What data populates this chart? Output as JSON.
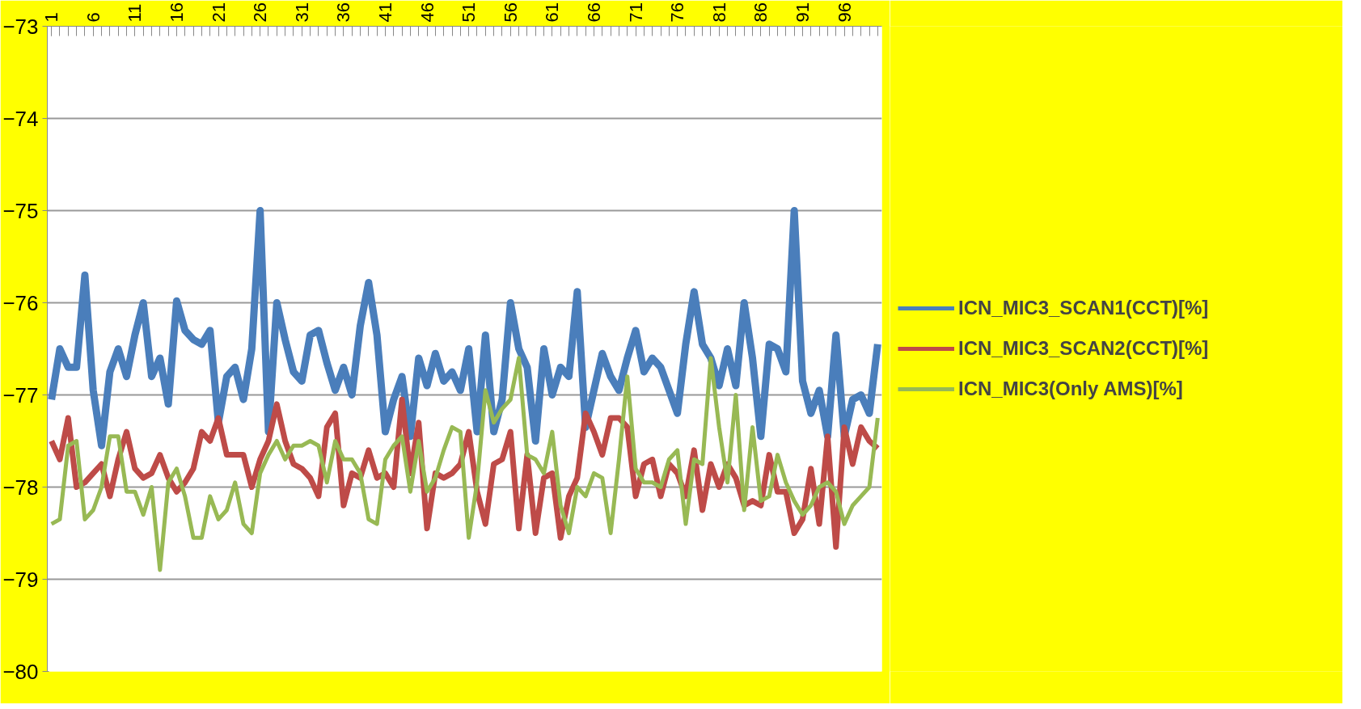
{
  "chart_data": {
    "type": "line",
    "categories": [
      "1",
      null,
      null,
      null,
      null,
      "6",
      null,
      null,
      null,
      null,
      "11",
      null,
      null,
      null,
      null,
      "16",
      null,
      null,
      null,
      null,
      "21",
      null,
      null,
      null,
      null,
      "26",
      null,
      null,
      null,
      null,
      "31",
      null,
      null,
      null,
      null,
      "36",
      null,
      null,
      null,
      null,
      "41",
      null,
      null,
      null,
      null,
      "46",
      null,
      null,
      null,
      null,
      "51",
      null,
      null,
      null,
      null,
      "56",
      null,
      null,
      null,
      null,
      "61",
      null,
      null,
      null,
      null,
      "66",
      null,
      null,
      null,
      null,
      "71",
      null,
      null,
      null,
      null,
      "76",
      null,
      null,
      null,
      null,
      "81",
      null,
      null,
      null,
      null,
      "86",
      null,
      null,
      null,
      null,
      "91",
      null,
      null,
      null,
      null,
      "96",
      null,
      null,
      null,
      null
    ],
    "series": [
      {
        "name": "ICN_MIC3_SCAN1(CCT)[%]",
        "color": "#4a7ebb",
        "values": [
          -77.05,
          -76.5,
          -76.7,
          -76.7,
          -75.7,
          -76.95,
          -77.55,
          -76.75,
          -76.5,
          -76.8,
          -76.35,
          -76.0,
          -76.8,
          -76.6,
          -77.1,
          -75.98,
          -76.3,
          -76.4,
          -76.45,
          -76.3,
          -77.3,
          -76.8,
          -76.7,
          -77.05,
          -76.5,
          -75.0,
          -77.4,
          -76.0,
          -76.4,
          -76.75,
          -76.85,
          -76.35,
          -76.3,
          -76.65,
          -76.95,
          -76.7,
          -77.0,
          -76.25,
          -75.78,
          -76.35,
          -77.4,
          -77.05,
          -76.8,
          -77.45,
          -76.6,
          -76.9,
          -76.55,
          -76.85,
          -76.75,
          -76.95,
          -76.5,
          -77.4,
          -76.35,
          -77.4,
          -77.05,
          -76.0,
          -76.5,
          -76.7,
          -77.5,
          -76.5,
          -77.0,
          -76.7,
          -76.8,
          -75.88,
          -77.35,
          -76.95,
          -76.55,
          -76.8,
          -76.95,
          -76.6,
          -76.3,
          -76.75,
          -76.6,
          -76.7,
          -76.95,
          -77.2,
          -76.45,
          -75.88,
          -76.45,
          -76.6,
          -76.9,
          -76.5,
          -76.9,
          -76.0,
          -76.6,
          -77.45,
          -76.45,
          -76.5,
          -76.75,
          -75.0,
          -76.85,
          -77.2,
          -76.95,
          -77.45,
          -76.35,
          -77.45,
          -77.05,
          -77.0,
          -77.2,
          -76.45
        ]
      },
      {
        "name": "ICN_MIC3_SCAN2(CCT)[%]",
        "color": "#be4b48",
        "values": [
          -77.5,
          -77.7,
          -77.25,
          -78.0,
          -77.95,
          -77.85,
          -77.75,
          -78.1,
          -77.7,
          -77.4,
          -77.8,
          -77.9,
          -77.85,
          -77.65,
          -77.9,
          -78.05,
          -77.95,
          -77.8,
          -77.4,
          -77.5,
          -77.25,
          -77.65,
          -77.65,
          -77.65,
          -78.0,
          -77.7,
          -77.5,
          -77.1,
          -77.5,
          -77.75,
          -77.8,
          -77.9,
          -78.1,
          -77.35,
          -77.2,
          -78.2,
          -77.85,
          -77.9,
          -77.6,
          -77.9,
          -77.85,
          -78.0,
          -77.05,
          -77.85,
          -77.3,
          -78.45,
          -77.85,
          -77.9,
          -77.85,
          -77.75,
          -77.4,
          -78.05,
          -78.4,
          -77.75,
          -77.7,
          -77.4,
          -78.45,
          -77.65,
          -78.5,
          -77.9,
          -77.85,
          -78.55,
          -78.1,
          -77.9,
          -77.2,
          -77.4,
          -77.65,
          -77.25,
          -77.25,
          -77.35,
          -78.1,
          -77.75,
          -77.7,
          -78.1,
          -77.75,
          -77.85,
          -78.1,
          -77.6,
          -78.25,
          -77.75,
          -78.0,
          -77.75,
          -77.9,
          -78.2,
          -78.15,
          -78.2,
          -77.65,
          -78.05,
          -78.05,
          -78.5,
          -78.35,
          -77.8,
          -78.4,
          -77.45,
          -78.65,
          -77.35,
          -77.75,
          -77.35,
          -77.5,
          -77.58
        ]
      },
      {
        "name": "ICN_MIC3(Only AMS)[%]",
        "color": "#98b954",
        "values": [
          -78.4,
          -78.35,
          -77.55,
          -77.5,
          -78.35,
          -78.25,
          -78.0,
          -77.45,
          -77.45,
          -78.05,
          -78.05,
          -78.3,
          -78.0,
          -78.9,
          -77.95,
          -77.8,
          -78.1,
          -78.55,
          -78.55,
          -78.1,
          -78.35,
          -78.25,
          -77.95,
          -78.4,
          -78.5,
          -77.85,
          -77.65,
          -77.5,
          -77.7,
          -77.55,
          -77.55,
          -77.5,
          -77.55,
          -77.95,
          -77.5,
          -77.7,
          -77.7,
          -77.85,
          -78.35,
          -78.4,
          -77.7,
          -77.55,
          -77.45,
          -78.05,
          -77.5,
          -78.05,
          -77.9,
          -77.6,
          -77.35,
          -77.4,
          -78.55,
          -77.95,
          -76.95,
          -77.3,
          -77.15,
          -77.05,
          -76.6,
          -77.65,
          -77.7,
          -77.85,
          -77.4,
          -78.2,
          -78.5,
          -78.0,
          -78.1,
          -77.85,
          -77.9,
          -78.5,
          -77.7,
          -76.8,
          -77.8,
          -77.95,
          -77.95,
          -78.0,
          -77.7,
          -77.6,
          -78.4,
          -77.7,
          -77.75,
          -76.6,
          -77.35,
          -77.95,
          -77.0,
          -78.25,
          -77.35,
          -78.15,
          -78.1,
          -77.65,
          -77.95,
          -78.15,
          -78.3,
          -78.2,
          -78.0,
          -77.95,
          -78.05,
          -78.4,
          -78.2,
          -78.1,
          -78.0,
          -77.25
        ]
      }
    ],
    "ylim": [
      -80,
      -73
    ],
    "yticks": [
      -80,
      -79,
      -78,
      -77,
      -76,
      -75,
      -74,
      -73
    ],
    "grid": "y",
    "legend": "right"
  }
}
